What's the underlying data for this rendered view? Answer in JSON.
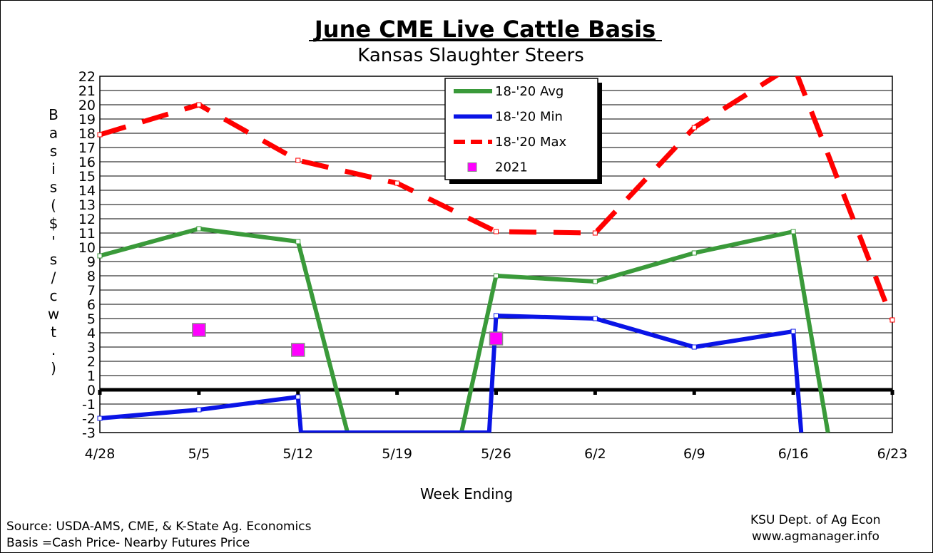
{
  "chart_data": {
    "type": "line",
    "title": "June CME Live Cattle Basis",
    "subtitle": "Kansas Slaughter Steers",
    "xlabel": "Week Ending",
    "ylabel": "Basis ($'s/cwt.)",
    "categories": [
      "4/28",
      "5/5",
      "5/12",
      "5/19",
      "5/26",
      "6/2",
      "6/9",
      "6/16",
      "6/23"
    ],
    "ylim": [
      -3,
      22
    ],
    "yticks": [
      -3,
      -2,
      -1,
      0,
      1,
      2,
      3,
      4,
      5,
      6,
      7,
      8,
      9,
      10,
      11,
      12,
      13,
      14,
      15,
      16,
      17,
      18,
      19,
      20,
      21,
      22
    ],
    "grid": true,
    "legend_position": "top-right",
    "series": [
      {
        "name": "18-'20 Avg",
        "color": "#3a9a3a",
        "style": "solid",
        "points": [
          [
            0,
            9.4
          ],
          [
            1,
            11.3
          ],
          [
            2,
            10.4
          ],
          [
            2.5,
            -3
          ],
          [
            3.65,
            -3
          ],
          [
            4,
            8.0
          ],
          [
            5,
            7.6
          ],
          [
            6,
            9.6
          ],
          [
            7,
            11.1
          ],
          [
            7.35,
            -3
          ]
        ]
      },
      {
        "name": "18-'20 Min",
        "color": "#0a14e6",
        "style": "solid",
        "points": [
          [
            0,
            -2.0
          ],
          [
            1,
            -1.4
          ],
          [
            2,
            -0.5
          ],
          [
            2.03,
            -3
          ],
          [
            3.93,
            -3
          ],
          [
            4,
            5.2
          ],
          [
            5,
            5.0
          ],
          [
            6,
            3.0
          ],
          [
            7,
            4.1
          ],
          [
            7.08,
            -3
          ]
        ]
      },
      {
        "name": "18-'20 Max",
        "color": "#ff0000",
        "style": "dashed",
        "points": [
          [
            0,
            17.9
          ],
          [
            1,
            20.0
          ],
          [
            2,
            16.1
          ],
          [
            3,
            14.5
          ],
          [
            4,
            11.1
          ],
          [
            5,
            11.0
          ],
          [
            6,
            18.4
          ],
          [
            7,
            22.8
          ],
          [
            8,
            4.9
          ]
        ]
      }
    ],
    "scatter_series": {
      "name": "2021",
      "color": "#ff00ff",
      "points": [
        [
          1,
          4.2
        ],
        [
          2,
          2.8
        ],
        [
          4,
          3.6
        ]
      ]
    },
    "legend": {
      "entries": [
        "18-'20 Avg",
        "18-'20 Min",
        "18-'20 Max",
        "2021"
      ]
    }
  },
  "notes": {
    "source": "Source:  USDA-AMS, CME, & K-State Ag. Economics",
    "basis_def": "Basis =Cash Price- Nearby Futures Price",
    "org": "KSU Dept. of Ag Econ",
    "website": "www.agmanager.info"
  }
}
